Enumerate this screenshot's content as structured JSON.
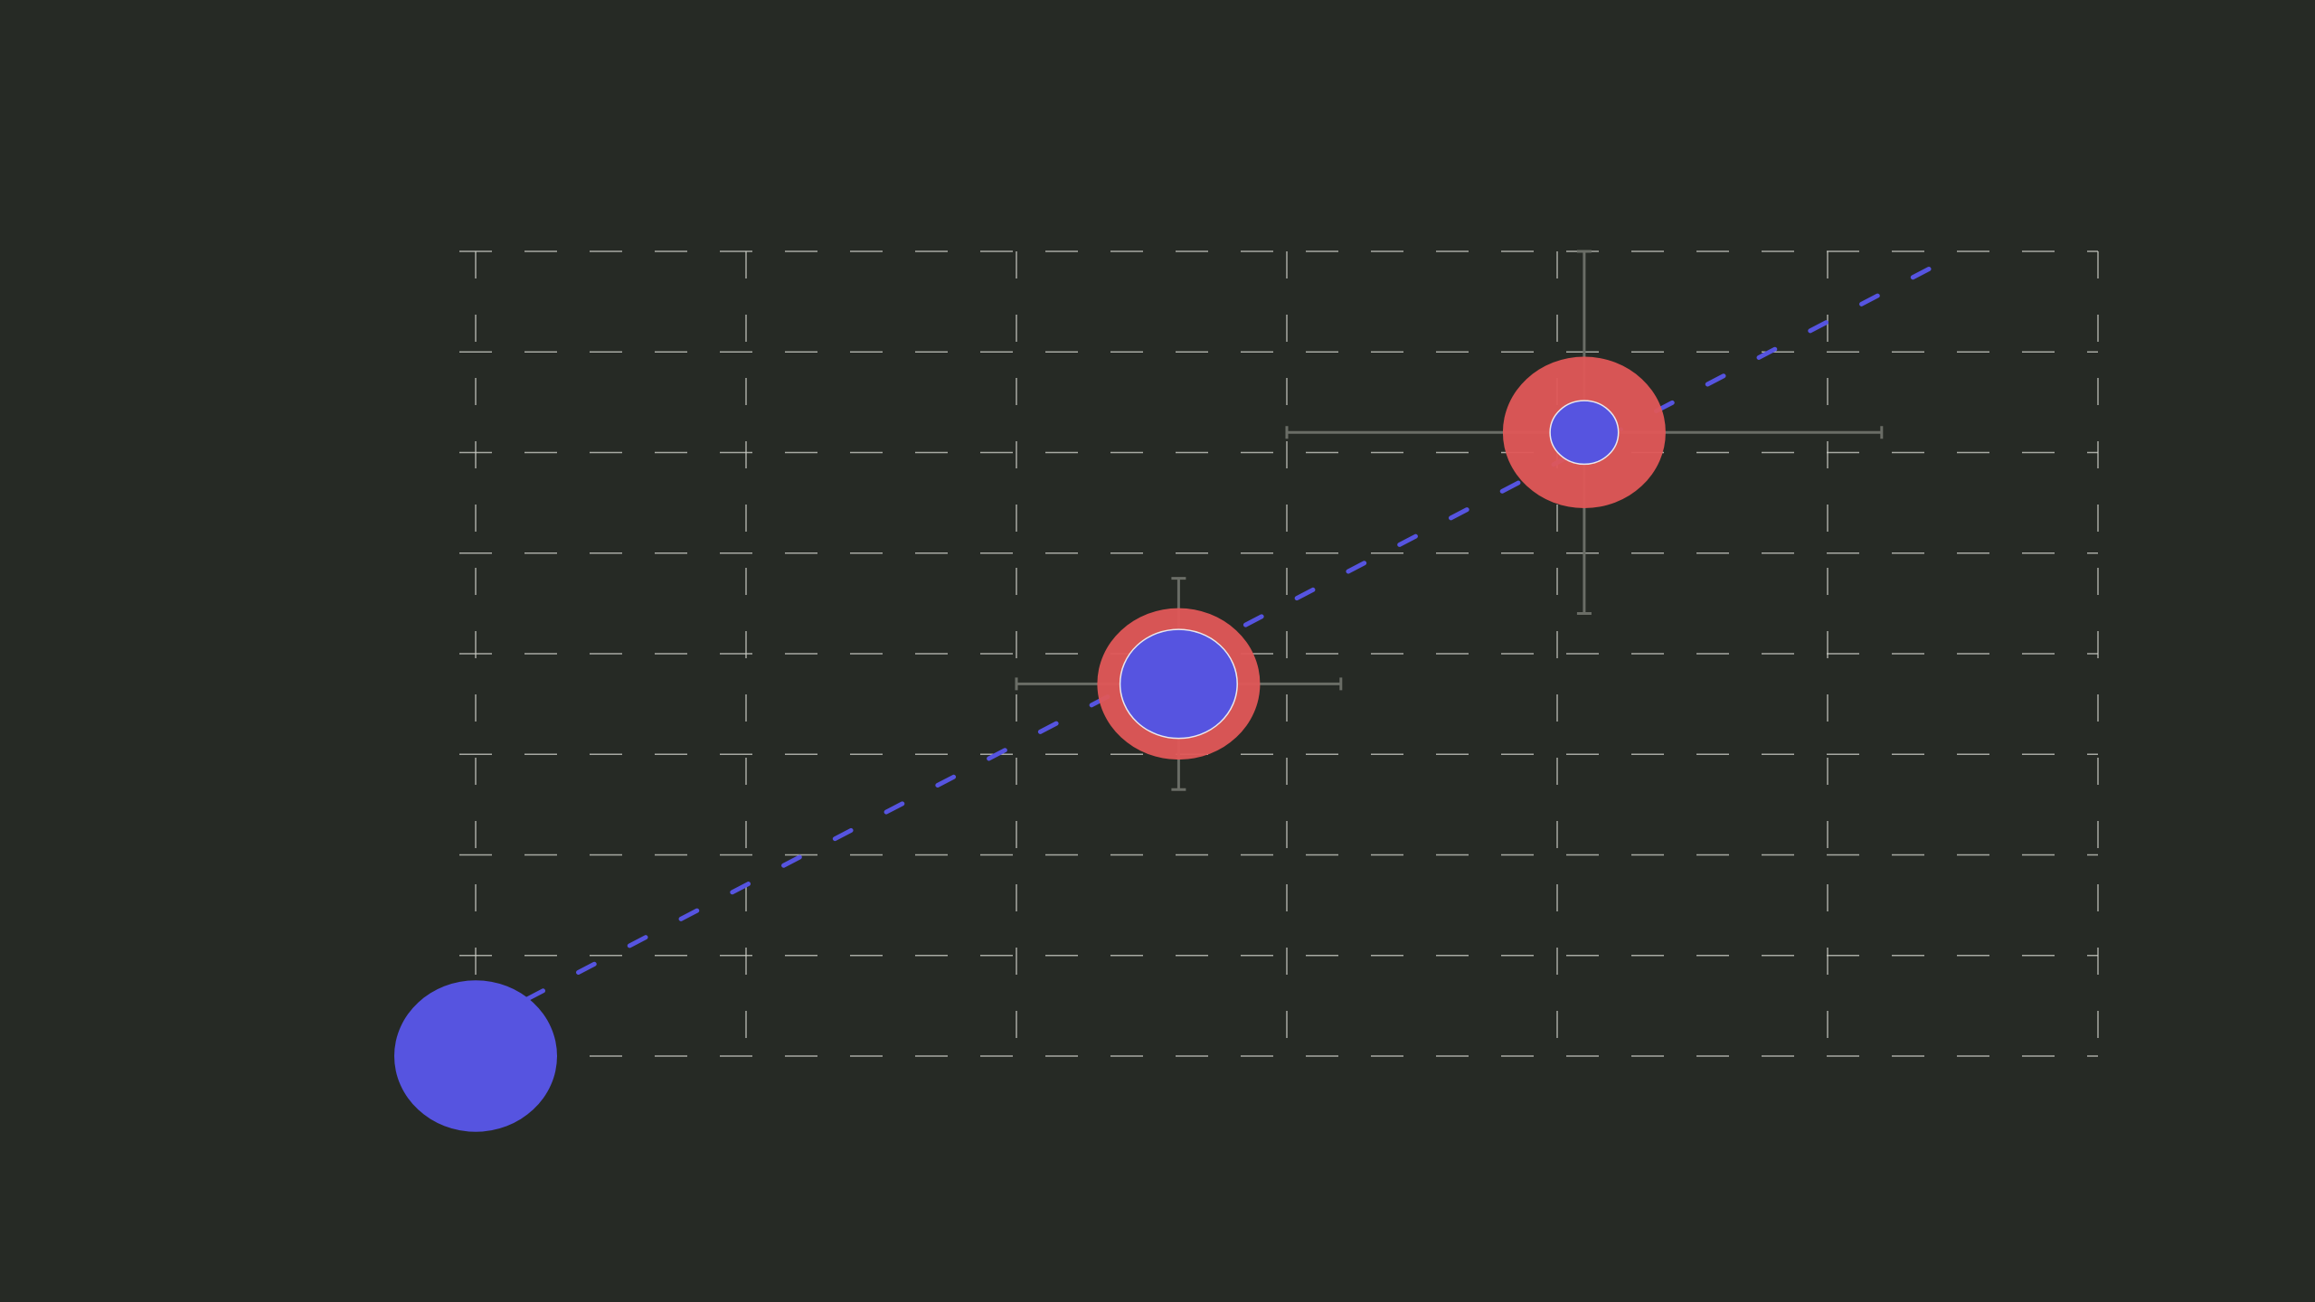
{
  "chart_data": {
    "type": "scatter",
    "title": "",
    "xlabel": "",
    "ylabel": "",
    "xlim": [
      0,
      6
    ],
    "ylim": [
      0,
      8
    ],
    "grid": true,
    "legend": "none",
    "colors": {
      "background": "#262a25",
      "grid": "#c9cbc4",
      "point_primary": "#5654e0",
      "point_secondary": "#e05757",
      "trend": "#5654e0",
      "error_bar": "#6a6d66"
    },
    "trend_line": {
      "from": [
        0,
        0.3
      ],
      "to": [
        5.5,
        8.0
      ],
      "style": "dashed"
    },
    "points": [
      {
        "x": 0.0,
        "y": 0.0,
        "size_value": 1.0,
        "ring_size_value": null,
        "xerr": null,
        "yerr": null
      },
      {
        "x": 2.6,
        "y": 3.7,
        "size_value": 0.72,
        "ring_size_value": 1.0,
        "xerr": [
          0.6,
          0.6
        ],
        "yerr": [
          1.05,
          1.05
        ]
      },
      {
        "x": 4.1,
        "y": 6.2,
        "size_value": 0.42,
        "ring_size_value": 1.0,
        "xerr": [
          1.1,
          1.1
        ],
        "yerr": [
          1.8,
          1.8
        ]
      }
    ]
  }
}
